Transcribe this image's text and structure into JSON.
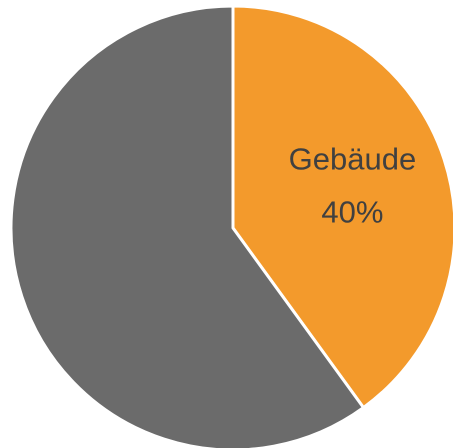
{
  "chart_data": {
    "type": "pie",
    "categories": [
      "Gebäude",
      null
    ],
    "values": [
      40,
      60
    ],
    "value_labels": [
      "40%",
      null
    ],
    "colors": [
      "#f39a2c",
      "#6b6b6b"
    ]
  }
}
